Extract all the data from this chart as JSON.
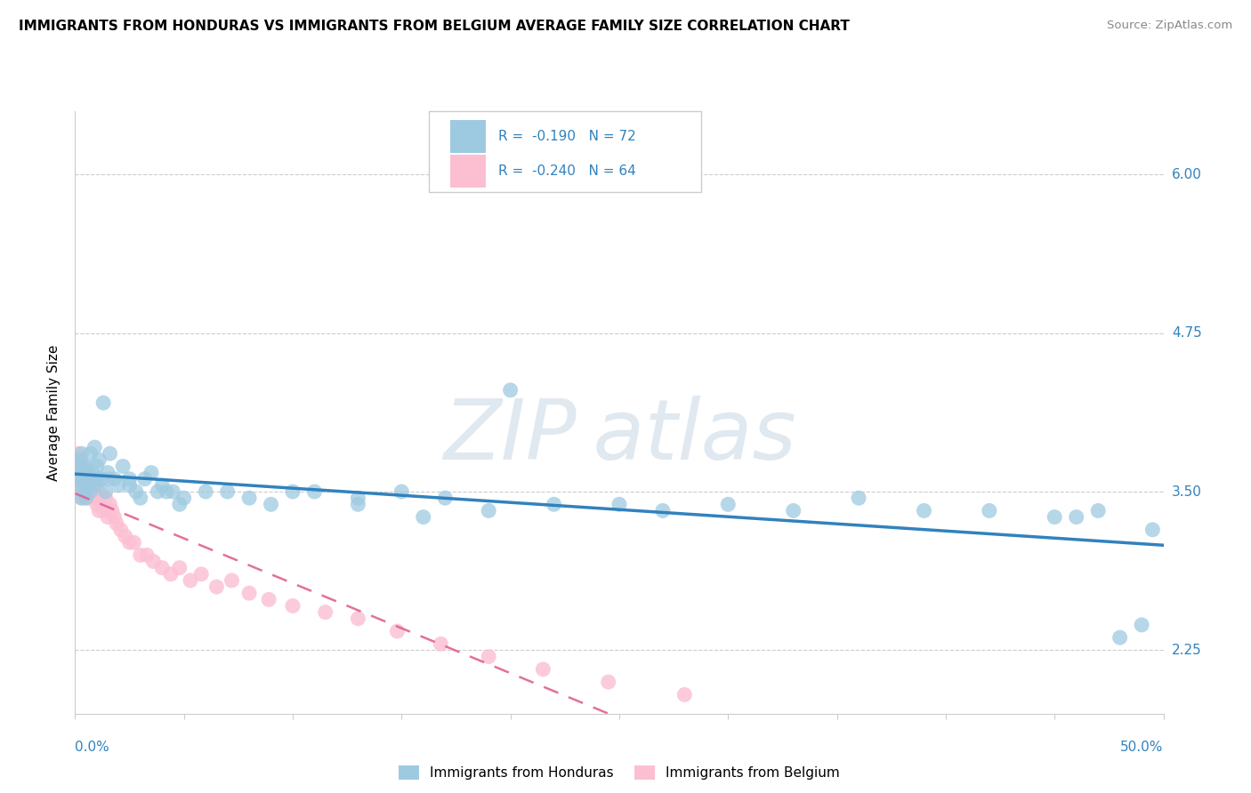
{
  "title": "IMMIGRANTS FROM HONDURAS VS IMMIGRANTS FROM BELGIUM AVERAGE FAMILY SIZE CORRELATION CHART",
  "source": "Source: ZipAtlas.com",
  "ylabel": "Average Family Size",
  "yticks": [
    2.25,
    3.5,
    4.75,
    6.0
  ],
  "xlim": [
    0.0,
    0.5
  ],
  "ylim": [
    1.75,
    6.5
  ],
  "legend1_r": "-0.190",
  "legend1_n": "72",
  "legend2_r": "-0.240",
  "legend2_n": "64",
  "legend_label1": "Immigrants from Honduras",
  "legend_label2": "Immigrants from Belgium",
  "color_blue": "#9ecae1",
  "color_pink": "#fcbfd2",
  "color_blue_line": "#3182bd",
  "color_pink_line": "#e06090",
  "legend_text_color": "#3182bd",
  "watermark_color": "#e0e8f0",
  "background_color": "#ffffff",
  "grid_color": "#cccccc",
  "honduras_x": [
    0.001,
    0.001,
    0.002,
    0.002,
    0.003,
    0.003,
    0.003,
    0.004,
    0.004,
    0.004,
    0.005,
    0.005,
    0.005,
    0.006,
    0.006,
    0.007,
    0.007,
    0.008,
    0.008,
    0.009,
    0.009,
    0.01,
    0.01,
    0.011,
    0.012,
    0.013,
    0.014,
    0.015,
    0.015,
    0.016,
    0.018,
    0.02,
    0.022,
    0.025,
    0.025,
    0.028,
    0.03,
    0.032,
    0.035,
    0.038,
    0.04,
    0.042,
    0.045,
    0.048,
    0.05,
    0.06,
    0.07,
    0.08,
    0.09,
    0.1,
    0.11,
    0.13,
    0.15,
    0.17,
    0.2,
    0.22,
    0.25,
    0.27,
    0.3,
    0.33,
    0.36,
    0.39,
    0.42,
    0.45,
    0.46,
    0.47,
    0.48,
    0.49,
    0.495,
    0.13,
    0.16,
    0.19
  ],
  "honduras_y": [
    3.6,
    3.7,
    3.55,
    3.75,
    3.45,
    3.65,
    3.8,
    3.6,
    3.5,
    3.7,
    3.65,
    3.45,
    3.7,
    3.55,
    3.65,
    3.8,
    3.5,
    3.65,
    3.6,
    3.85,
    3.55,
    3.6,
    3.7,
    3.75,
    3.6,
    4.2,
    3.5,
    3.65,
    3.6,
    3.8,
    3.6,
    3.55,
    3.7,
    3.55,
    3.6,
    3.5,
    3.45,
    3.6,
    3.65,
    3.5,
    3.55,
    3.5,
    3.5,
    3.4,
    3.45,
    3.5,
    3.5,
    3.45,
    3.4,
    3.5,
    3.5,
    3.45,
    3.5,
    3.45,
    4.3,
    3.4,
    3.4,
    3.35,
    3.4,
    3.35,
    3.45,
    3.35,
    3.35,
    3.3,
    3.3,
    3.35,
    2.35,
    2.45,
    3.2,
    3.4,
    3.3,
    3.35
  ],
  "belgium_x": [
    0.001,
    0.001,
    0.001,
    0.002,
    0.002,
    0.002,
    0.002,
    0.002,
    0.003,
    0.003,
    0.003,
    0.003,
    0.004,
    0.004,
    0.004,
    0.004,
    0.005,
    0.005,
    0.005,
    0.006,
    0.006,
    0.006,
    0.007,
    0.007,
    0.008,
    0.008,
    0.009,
    0.009,
    0.01,
    0.011,
    0.011,
    0.012,
    0.013,
    0.014,
    0.015,
    0.016,
    0.017,
    0.018,
    0.019,
    0.021,
    0.023,
    0.025,
    0.027,
    0.03,
    0.033,
    0.036,
    0.04,
    0.044,
    0.048,
    0.053,
    0.058,
    0.065,
    0.072,
    0.08,
    0.089,
    0.1,
    0.115,
    0.13,
    0.148,
    0.168,
    0.19,
    0.215,
    0.245,
    0.28
  ],
  "belgium_y": [
    3.6,
    3.7,
    3.8,
    3.55,
    3.65,
    3.75,
    3.5,
    3.6,
    3.55,
    3.65,
    3.45,
    3.7,
    3.55,
    3.65,
    3.5,
    3.6,
    3.55,
    3.65,
    3.5,
    3.55,
    3.45,
    3.6,
    3.5,
    3.6,
    3.5,
    3.55,
    3.45,
    3.55,
    3.4,
    3.35,
    3.5,
    3.45,
    3.35,
    3.45,
    3.3,
    3.4,
    3.35,
    3.3,
    3.25,
    3.2,
    3.15,
    3.1,
    3.1,
    3.0,
    3.0,
    2.95,
    2.9,
    2.85,
    2.9,
    2.8,
    2.85,
    2.75,
    2.8,
    2.7,
    2.65,
    2.6,
    2.55,
    2.5,
    2.4,
    2.3,
    2.2,
    2.1,
    2.0,
    1.9
  ]
}
